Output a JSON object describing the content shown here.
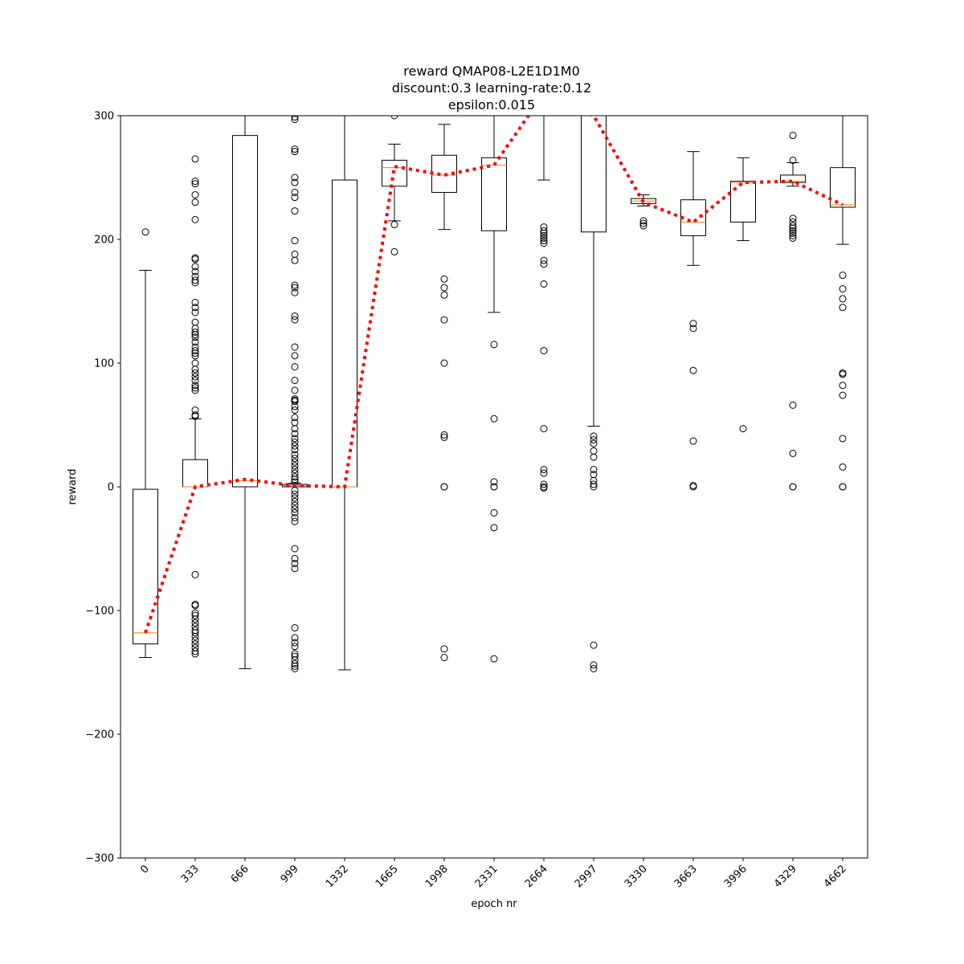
{
  "chart_data": {
    "type": "box",
    "title": [
      "reward QMAP08-L2E1D1M0",
      "discount:0.3 learning-rate:0.12",
      "epsilon:0.015"
    ],
    "xlabel": "epoch nr",
    "ylabel": "reward",
    "ylim": [
      -300,
      300
    ],
    "yticks": [
      -300,
      -200,
      -100,
      0,
      100,
      200,
      300
    ],
    "categories": [
      "0",
      "333",
      "666",
      "999",
      "1332",
      "1665",
      "1998",
      "2331",
      "2664",
      "2997",
      "3330",
      "3663",
      "3996",
      "4329",
      "4662"
    ],
    "boxes": [
      {
        "q1": -127,
        "median": -118,
        "q3": -2,
        "whisker_low": -138,
        "whisker_high": 175,
        "fliers": [
          206
        ]
      },
      {
        "q1": 0,
        "median": 0,
        "q3": 22,
        "whisker_low": 0,
        "whisker_high": 55,
        "fliers": [
          265,
          247,
          245,
          236,
          230,
          216,
          185,
          184,
          178,
          174,
          170,
          167,
          165,
          149,
          145,
          141,
          133,
          128,
          125,
          123,
          121,
          117,
          113,
          110,
          108,
          106,
          100,
          95,
          92,
          89,
          86,
          82,
          80,
          78,
          62,
          58,
          57,
          -71,
          -95,
          -96,
          -102,
          -104,
          -107,
          -110,
          -113,
          -116,
          -118,
          -121,
          -124,
          -127,
          -130,
          -133,
          -135
        ]
      },
      {
        "q1": 0,
        "median": 5,
        "q3": 284,
        "whisker_low": -147,
        "whisker_high": 300,
        "fliers": []
      },
      {
        "q1": 0,
        "median": 1,
        "q3": 2,
        "whisker_low": 0,
        "whisker_high": 3,
        "fliers": [
          299,
          297,
          273,
          271,
          250,
          246,
          238,
          234,
          223,
          199,
          188,
          183,
          163,
          161,
          157,
          138,
          135,
          113,
          106,
          97,
          86,
          78,
          71,
          70,
          69,
          65,
          62,
          56,
          52,
          47,
          43,
          39,
          36,
          33,
          30,
          26,
          23,
          20,
          17,
          14,
          11,
          8,
          6,
          4,
          -3,
          -6,
          -9,
          -12,
          -15,
          -18,
          -21,
          -25,
          -28,
          -50,
          -58,
          -62,
          -66,
          -114,
          -122,
          -126,
          -129,
          -135,
          -137,
          -140,
          -143,
          -145,
          -147
        ]
      },
      {
        "q1": 0,
        "median": 0,
        "q3": 248,
        "whisker_low": -148,
        "whisker_high": 300,
        "fliers": []
      },
      {
        "q1": 243,
        "median": 258,
        "q3": 264,
        "whisker_low": 215,
        "whisker_high": 277,
        "fliers": [
          300,
          212,
          190
        ]
      },
      {
        "q1": 238,
        "median": 252,
        "q3": 268,
        "whisker_low": 208,
        "whisker_high": 293,
        "fliers": [
          168,
          161,
          155,
          135,
          100,
          42,
          40,
          0,
          0,
          -131,
          -138
        ]
      },
      {
        "q1": 207,
        "median": 260,
        "q3": 266,
        "whisker_low": 141,
        "whisker_high": 300,
        "fliers": [
          115,
          55,
          4,
          0,
          0,
          -21,
          -33,
          -139
        ]
      },
      {
        "q1": 300,
        "median": 318,
        "q3": 330,
        "whisker_low": 248,
        "whisker_high": 340,
        "fliers": [
          210,
          207,
          205,
          203,
          201,
          199,
          197,
          183,
          180,
          164,
          110,
          47,
          14,
          11,
          2,
          0,
          -1
        ]
      },
      {
        "q1": 206,
        "median": 300,
        "q3": 320,
        "whisker_low": 49,
        "whisker_high": 330,
        "fliers": [
          41,
          38,
          35,
          29,
          24,
          14,
          10,
          5,
          2,
          0,
          -128,
          -144,
          -147
        ]
      },
      {
        "q1": 229,
        "median": 231,
        "q3": 233,
        "whisker_low": 227,
        "whisker_high": 236,
        "fliers": [
          215,
          213,
          211
        ]
      },
      {
        "q1": 203,
        "median": 214,
        "q3": 232,
        "whisker_low": 179,
        "whisker_high": 271,
        "fliers": [
          132,
          128,
          94,
          37,
          1,
          0
        ]
      },
      {
        "q1": 214,
        "median": 246,
        "q3": 247,
        "whisker_low": 199,
        "whisker_high": 266,
        "fliers": [
          47
        ]
      },
      {
        "q1": 246,
        "median": 247,
        "q3": 252,
        "whisker_low": 243,
        "whisker_high": 262,
        "fliers": [
          284,
          264,
          217,
          214,
          211,
          209,
          207,
          205,
          203,
          201,
          66,
          27,
          0,
          0
        ]
      },
      {
        "q1": 226,
        "median": 228,
        "q3": 258,
        "whisker_low": 196,
        "whisker_high": 300,
        "fliers": [
          171,
          160,
          152,
          145,
          92,
          91,
          82,
          74,
          39,
          16,
          0,
          0
        ]
      }
    ],
    "mean_line": {
      "color": "#ff0000",
      "style": "dotted",
      "values": [
        -118,
        0,
        6,
        1,
        0,
        259,
        252,
        260,
        318,
        300,
        230,
        214,
        246,
        247,
        228
      ]
    },
    "colors": {
      "box": "#000000",
      "median": "#ff7f0e",
      "mean_line": "#ff0000"
    }
  }
}
